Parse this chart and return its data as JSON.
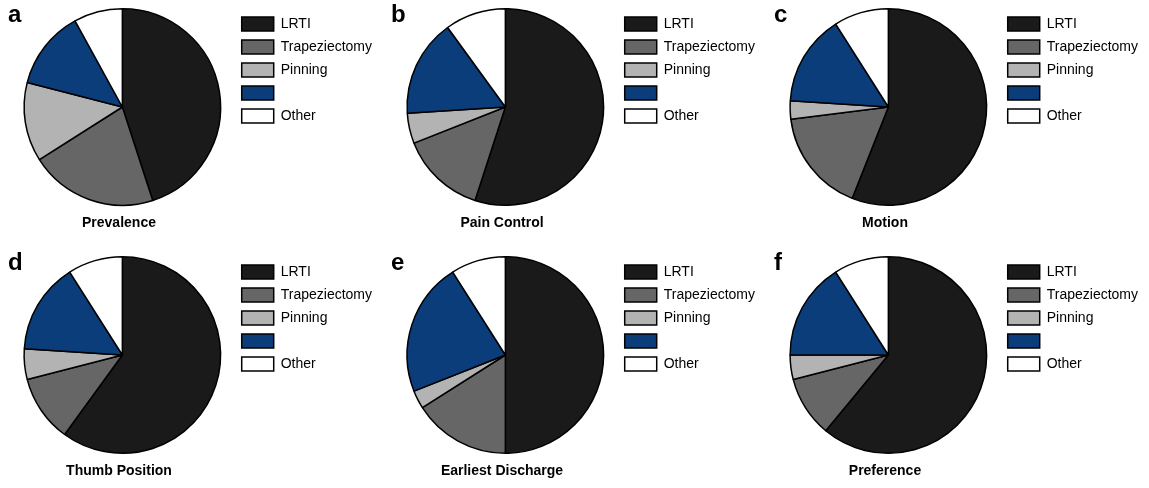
{
  "chart_data": [
    {
      "type": "pie",
      "title": "Prevalence",
      "annotations": [
        "a"
      ],
      "categories": [
        "LRTI",
        "Trapeziectomy",
        "Pinning",
        null,
        "Other"
      ],
      "values": [
        45,
        21,
        13,
        13,
        8
      ],
      "colors": [
        "#1a1a1a",
        "#666666",
        "#b3b3b3",
        "#0a3d7a",
        "#ffffff"
      ],
      "legend": "right"
    },
    {
      "type": "pie",
      "title": "Pain Control",
      "annotations": [
        "b"
      ],
      "categories": [
        "LRTI",
        "Trapeziectomy",
        "Pinning",
        null,
        "Other"
      ],
      "values": [
        55,
        14,
        5,
        16,
        10
      ],
      "colors": [
        "#1a1a1a",
        "#666666",
        "#b3b3b3",
        "#0a3d7a",
        "#ffffff"
      ],
      "legend": "right"
    },
    {
      "type": "pie",
      "title": "Motion",
      "annotations": [
        "c"
      ],
      "categories": [
        "LRTI",
        "Trapeziectomy",
        "Pinning",
        null,
        "Other"
      ],
      "values": [
        56,
        17,
        3,
        15,
        9
      ],
      "colors": [
        "#1a1a1a",
        "#666666",
        "#b3b3b3",
        "#0a3d7a",
        "#ffffff"
      ],
      "legend": "right"
    },
    {
      "type": "pie",
      "title": "Thumb Position",
      "annotations": [
        "d"
      ],
      "categories": [
        "LRTI",
        "Trapeziectomy",
        "Pinning",
        null,
        "Other"
      ],
      "values": [
        60,
        11,
        5,
        15,
        9
      ],
      "colors": [
        "#1a1a1a",
        "#666666",
        "#b3b3b3",
        "#0a3d7a",
        "#ffffff"
      ],
      "legend": "right"
    },
    {
      "type": "pie",
      "title": "Earliest Discharge",
      "annotations": [
        "e"
      ],
      "categories": [
        "LRTI",
        "Trapeziectomy",
        "Pinning",
        null,
        "Other"
      ],
      "values": [
        50,
        16,
        3,
        22,
        9
      ],
      "colors": [
        "#1a1a1a",
        "#666666",
        "#b3b3b3",
        "#0a3d7a",
        "#ffffff"
      ],
      "legend": "right"
    },
    {
      "type": "pie",
      "title": "Preference",
      "annotations": [
        "f"
      ],
      "categories": [
        "LRTI",
        "Trapeziectomy",
        "Pinning",
        null,
        "Other"
      ],
      "values": [
        61,
        10,
        4,
        16,
        9
      ],
      "colors": [
        "#1a1a1a",
        "#666666",
        "#b3b3b3",
        "#0a3d7a",
        "#ffffff"
      ],
      "legend": "right"
    }
  ]
}
